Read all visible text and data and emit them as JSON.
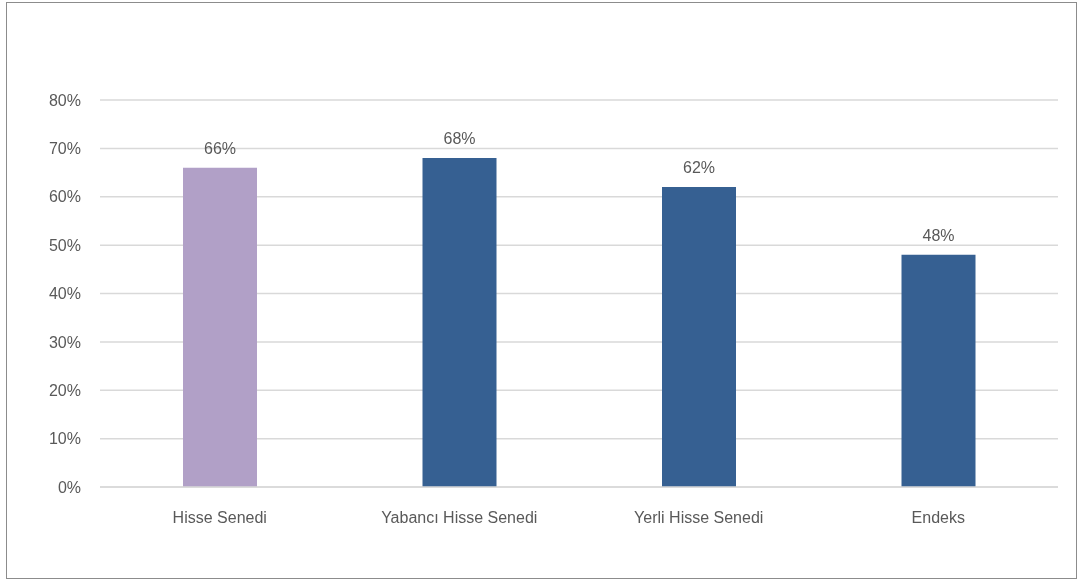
{
  "chart_data": {
    "type": "bar",
    "categories": [
      "Hisse Senedi",
      "Yabancı Hisse Senedi",
      "Yerli Hisse Senedi",
      "Endeks"
    ],
    "values": [
      66,
      68,
      62,
      48
    ],
    "colors": [
      "#b1a0c7",
      "#366092",
      "#366092",
      "#366092"
    ],
    "value_labels": [
      "66%",
      "68%",
      "62%",
      "48%"
    ],
    "ylim": [
      0,
      80
    ],
    "yticks": [
      {
        "value": 0,
        "label": "0%"
      },
      {
        "value": 10,
        "label": "10%"
      },
      {
        "value": 20,
        "label": "20%"
      },
      {
        "value": 30,
        "label": "30%"
      },
      {
        "value": 40,
        "label": "40%"
      },
      {
        "value": 50,
        "label": "50%"
      },
      {
        "value": 60,
        "label": "60%"
      },
      {
        "value": 70,
        "label": "70%"
      },
      {
        "value": 80,
        "label": "80%"
      }
    ],
    "grid": "y"
  }
}
